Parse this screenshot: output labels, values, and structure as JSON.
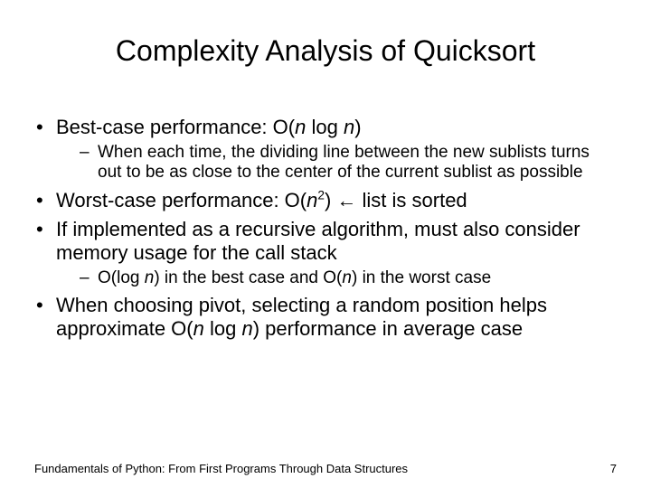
{
  "title": "Complexity Analysis of Quicksort",
  "bullets": {
    "b1_pre": "Best-case performance: O(",
    "b1_var1": "n",
    "b1_mid": " log ",
    "b1_var2": "n",
    "b1_post": ")",
    "b1_sub": "When each time, the dividing line between the new sublists turns out to be as close to the center of the current sublist as possible",
    "b2_pre": "Worst-case performance: O(",
    "b2_var": "n",
    "b2_sup": "2",
    "b2_post": ") ",
    "b2_arrow": "←",
    "b2_tail": " list is sorted",
    "b3": "If implemented as a recursive algorithm, must also consider memory usage for the call stack",
    "b3_sub_pre": "O(log ",
    "b3_sub_var1": "n",
    "b3_sub_mid": ") in the best case and O(",
    "b3_sub_var2": "n",
    "b3_sub_post": ") in the worst case",
    "b4_pre": "When choosing pivot, selecting a random position helps approximate O(",
    "b4_var1": "n",
    "b4_mid": " log ",
    "b4_var2": "n",
    "b4_post": ") performance in average case"
  },
  "footer": "Fundamentals of Python: From First Programs Through Data Structures",
  "page": "7",
  "style": {
    "background": "#ffffff",
    "text_color": "#000000",
    "title_fontsize": 32,
    "body_fontsize": 22,
    "sub_fontsize": 19,
    "footer_fontsize": 13
  }
}
